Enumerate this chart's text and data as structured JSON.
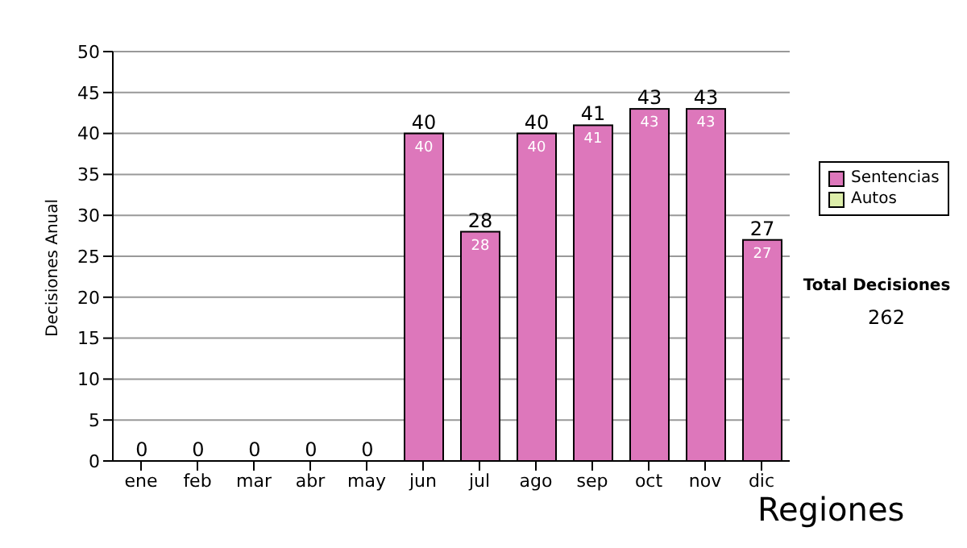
{
  "chart_data": {
    "type": "bar",
    "ylabel": "Decisiones Anual",
    "categories": [
      "ene",
      "feb",
      "mar",
      "abr",
      "may",
      "jun",
      "jul",
      "ago",
      "sep",
      "oct",
      "nov",
      "dic"
    ],
    "series": [
      {
        "name": "Sentencias",
        "color": "#dd77bb",
        "values": [
          0,
          0,
          0,
          0,
          0,
          40,
          28,
          40,
          41,
          43,
          43,
          27
        ],
        "value_labels": [
          null,
          null,
          null,
          null,
          null,
          "40",
          "28",
          "40",
          "41",
          "43",
          "43",
          "27"
        ]
      },
      {
        "name": "Autos",
        "color": "#ddeeaa",
        "values": [
          0,
          0,
          0,
          0,
          0,
          0,
          0,
          0,
          0,
          0,
          0,
          0
        ]
      }
    ],
    "stacked": true,
    "totals": [
      "0",
      "0",
      "0",
      "0",
      "0",
      "40",
      "28",
      "40",
      "41",
      "43",
      "43",
      "27"
    ],
    "ylim": [
      0,
      50
    ],
    "yticks": [
      0,
      5,
      10,
      15,
      20,
      25,
      30,
      35,
      40,
      45,
      50
    ],
    "grid": "y",
    "legend": "right",
    "annotations": [
      "Total Decisiones",
      "262",
      "Regiones"
    ]
  }
}
